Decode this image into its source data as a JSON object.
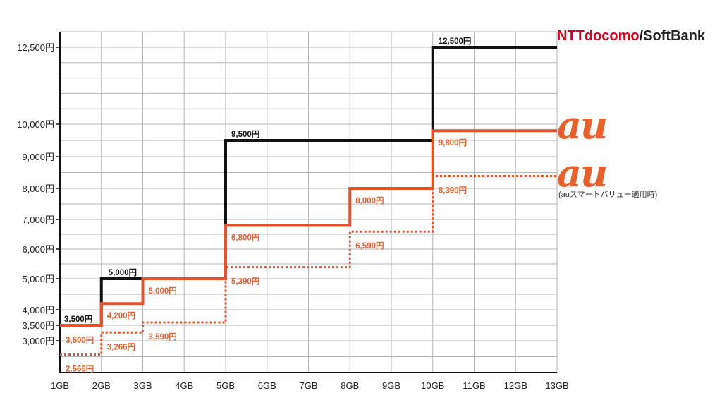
{
  "legend": {
    "docomo": "NTTdocomo",
    "slash": "/",
    "softbank": "SoftBank",
    "au1": "au",
    "au2": "au",
    "au2_note": "(auスマートバリュー適用時)",
    "colors": {
      "docomo_red": "#d8001c",
      "black": "#111111",
      "au_orange": "#e8502a"
    }
  },
  "chart_data": {
    "type": "line",
    "step": true,
    "x_ticks": [
      "1GB",
      "2GB",
      "3GB",
      "4GB",
      "5GB",
      "6GB",
      "7GB",
      "8GB",
      "9GB",
      "10GB",
      "11GB",
      "12GB",
      "13GB"
    ],
    "y_tick_labels": [
      {
        "value": 3000,
        "label": "3,000円"
      },
      {
        "value": 3500,
        "label": "3,500円"
      },
      {
        "value": 4000,
        "label": "4,000円"
      },
      {
        "value": 5000,
        "label": "5,000円"
      },
      {
        "value": 6000,
        "label": "6,000円"
      },
      {
        "value": 7000,
        "label": "7,000円"
      },
      {
        "value": 8000,
        "label": "8,000円"
      },
      {
        "value": 9000,
        "label": "9,000円"
      },
      {
        "value": 10000,
        "label": "10,000円"
      },
      {
        "value": 12500,
        "label": "12,500円"
      }
    ],
    "grid": true,
    "series": [
      {
        "key": "docomo_softbank",
        "color": "#111111",
        "style": "solid",
        "segments": [
          {
            "x_from": 1,
            "x_to": 2,
            "y": 3500,
            "label": "3,500円"
          },
          {
            "x_from": 2,
            "x_to": 5,
            "y": 5000,
            "label": "5,000円"
          },
          {
            "x_from": 5,
            "x_to": 10,
            "y": 9500,
            "label": "9,500円"
          },
          {
            "x_from": 10,
            "x_to": 13,
            "y": 12500,
            "label": "12,500円"
          }
        ]
      },
      {
        "key": "au",
        "color": "#e8502a",
        "style": "solid",
        "segments": [
          {
            "x_from": 1,
            "x_to": 2,
            "y": 3500,
            "label": "3,500円"
          },
          {
            "x_from": 2,
            "x_to": 3,
            "y": 4200,
            "label": "4,200円"
          },
          {
            "x_from": 3,
            "x_to": 5,
            "y": 5000,
            "label": "5,000円"
          },
          {
            "x_from": 5,
            "x_to": 8,
            "y": 6800,
            "label": "6,800円"
          },
          {
            "x_from": 8,
            "x_to": 10,
            "y": 8000,
            "label": "8,000円"
          },
          {
            "x_from": 10,
            "x_to": 13,
            "y": 9800,
            "label": "9,800円"
          }
        ]
      },
      {
        "key": "au_smart_value",
        "color": "#e8502a",
        "style": "dotted",
        "segments": [
          {
            "x_from": 1,
            "x_to": 2,
            "y": 2566,
            "label": "2,566円"
          },
          {
            "x_from": 2,
            "x_to": 3,
            "y": 3266,
            "label": "3,266円"
          },
          {
            "x_from": 3,
            "x_to": 5,
            "y": 3590,
            "label": "3,590円"
          },
          {
            "x_from": 5,
            "x_to": 8,
            "y": 5390,
            "label": "5,390円"
          },
          {
            "x_from": 8,
            "x_to": 10,
            "y": 6590,
            "label": "6,590円"
          },
          {
            "x_from": 10,
            "x_to": 13,
            "y": 8390,
            "label": "8,390円"
          }
        ]
      }
    ]
  }
}
